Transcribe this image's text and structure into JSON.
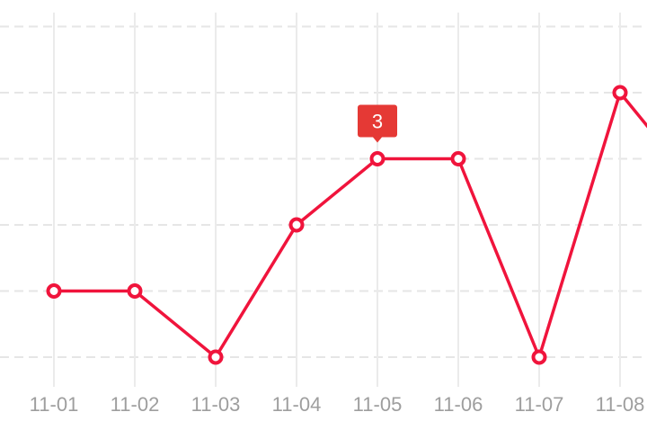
{
  "chart_data": {
    "type": "line",
    "categories": [
      "11-01",
      "11-02",
      "11-03",
      "11-04",
      "11-05",
      "11-06",
      "11-07",
      "11-08",
      ""
    ],
    "values": [
      1,
      1,
      0,
      2,
      3,
      3,
      0,
      4,
      2.5
    ],
    "ylim": [
      0,
      5
    ],
    "grid": {
      "horizontal": "dashed",
      "vertical": "solid"
    },
    "series_color": "#f0143c",
    "tooltip": {
      "category": "11-05",
      "value": "3",
      "color": "#e53935"
    },
    "title": "",
    "xlabel": "",
    "ylabel": ""
  }
}
